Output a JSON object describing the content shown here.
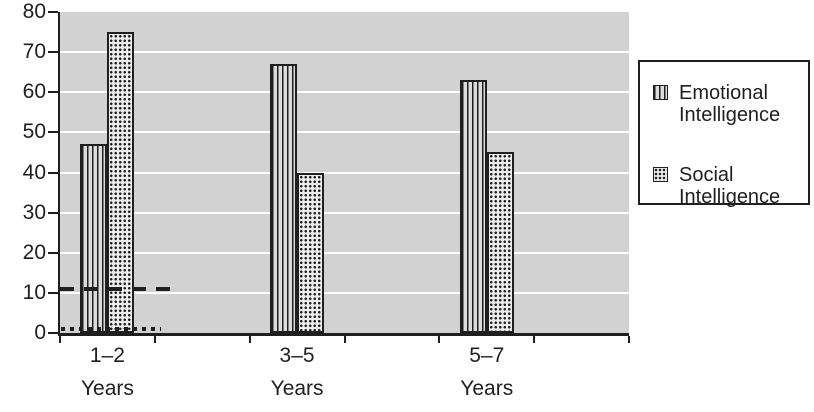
{
  "chart_data": {
    "type": "bar",
    "title": "",
    "xlabel": "",
    "ylabel": "",
    "categories": [
      "1–2 Years",
      "3–5 Years",
      "5–7 Years"
    ],
    "category_labels": [
      {
        "line1": "1–2",
        "line2": "Years"
      },
      {
        "line1": "3–5",
        "line2": "Years"
      },
      {
        "line1": "5–7",
        "line2": "Years"
      }
    ],
    "series": [
      {
        "name": "Emotional Intelligence",
        "pattern": "vertical-stripes",
        "values": [
          47,
          67,
          63
        ]
      },
      {
        "name": "Social Intelligence",
        "pattern": "dot-grid",
        "values": [
          75,
          40,
          45
        ]
      }
    ],
    "extra_marks": [
      {
        "type": "dashed",
        "value": 11,
        "x_start_frac": 0.0,
        "x_end_frac": 0.198,
        "note": "dashed segment over 1–2 Years group"
      },
      {
        "type": "dotted",
        "value": 1,
        "x_start_frac": 0.002,
        "x_end_frac": 0.178,
        "note": "dotted segment over 1–2 Years group"
      }
    ],
    "ylim": [
      0,
      80
    ],
    "y_ticks": [
      0,
      10,
      20,
      30,
      40,
      50,
      60,
      70,
      80
    ],
    "x_tick_count": 7,
    "grid": true,
    "gridline_values": [
      10,
      20,
      30,
      40,
      50,
      60,
      70
    ],
    "legend_position": "right",
    "plot_background": "#d2d2d2",
    "gridline_color": "#ffffff",
    "axis_color": "#1f1f1f"
  },
  "legend": {
    "items": [
      {
        "label_line1": "Emotional",
        "label_line2": "Intelligence",
        "pattern": "vertical-stripes"
      },
      {
        "label_line1": "Social",
        "label_line2": "Intelligence",
        "pattern": "dot-grid"
      }
    ]
  }
}
